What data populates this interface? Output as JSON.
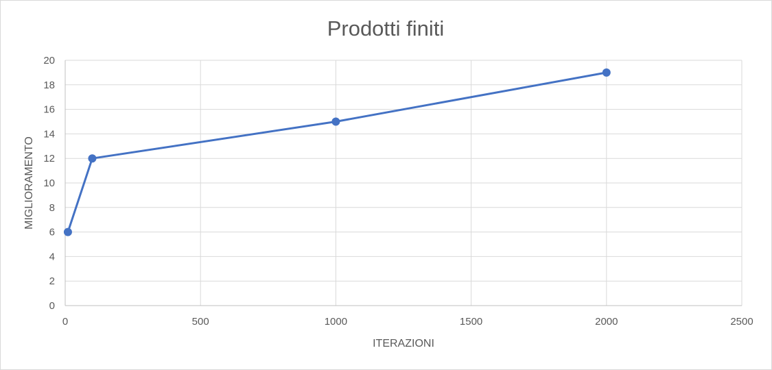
{
  "chart_data": {
    "type": "scatter",
    "title": "Prodotti finiti",
    "xlabel": "ITERAZIONI",
    "ylabel": "MIGLIORAMENTO",
    "xlim": [
      0,
      2500
    ],
    "ylim": [
      0,
      20
    ],
    "x_ticks": [
      "0",
      "500",
      "1000",
      "1500",
      "2000",
      "2500"
    ],
    "y_ticks": [
      "0",
      "2",
      "4",
      "6",
      "8",
      "10",
      "12",
      "14",
      "16",
      "18",
      "20"
    ],
    "grid": true,
    "legend": "none",
    "series": [
      {
        "x": [
          10,
          100,
          1000,
          2000
        ],
        "y": [
          6,
          12,
          15,
          19
        ],
        "color": "#4472C4",
        "line": "straight-with-markers"
      }
    ]
  }
}
